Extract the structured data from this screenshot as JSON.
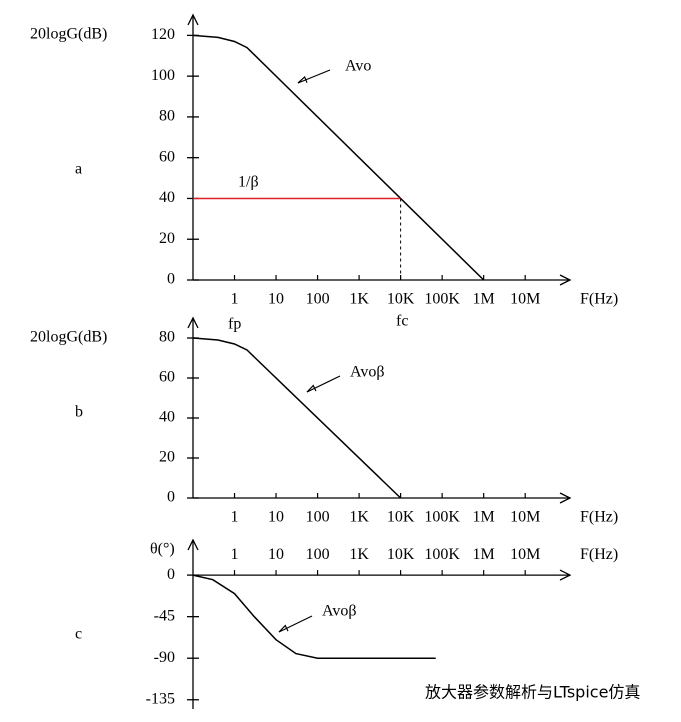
{
  "chart_data": [
    {
      "type": "line",
      "panel_label": "a",
      "ylabel": "20logG(dB)",
      "xlabel": "F(Hz)",
      "log_x": true,
      "xlim": [
        0.1,
        120000000
      ],
      "xticks": [
        1,
        10,
        100,
        {
          "value": 1000,
          "label": "1K"
        },
        {
          "value": 10000,
          "label": "10K"
        },
        {
          "value": 100000,
          "label": "100K"
        },
        {
          "value": 1000000,
          "label": "1M"
        },
        {
          "value": 10000000,
          "label": "10M"
        }
      ],
      "ylim": [
        0,
        130
      ],
      "yticks": [
        0,
        20,
        40,
        60,
        80,
        100,
        120
      ],
      "series": [
        {
          "name": "Avo",
          "color": "#000000",
          "x": [
            0.1,
            0.4,
            1,
            2,
            1000000
          ],
          "values": [
            120,
            119,
            117,
            114,
            0
          ]
        },
        {
          "name": "1/β",
          "color": "#e0202a",
          "x": [
            0.1,
            10000
          ],
          "values": [
            40,
            40
          ]
        }
      ],
      "annotations": [
        "fc"
      ]
    },
    {
      "type": "line",
      "panel_label": "b",
      "ylabel": "20logG(dB)",
      "xlabel": "F(Hz)",
      "log_x": true,
      "xlim": [
        0.1,
        120000000
      ],
      "xticks": [
        1,
        10,
        100,
        {
          "value": 1000,
          "label": "1K"
        },
        {
          "value": 10000,
          "label": "10K"
        },
        {
          "value": 100000,
          "label": "100K"
        },
        {
          "value": 1000000,
          "label": "1M"
        },
        {
          "value": 10000000,
          "label": "10M"
        }
      ],
      "ylim": [
        0,
        90
      ],
      "yticks": [
        0,
        20,
        40,
        60,
        80
      ],
      "series": [
        {
          "name": "Avoβ",
          "color": "#000000",
          "x": [
            0.1,
            0.4,
            1,
            2,
            10000
          ],
          "values": [
            80,
            79,
            77,
            74,
            0
          ]
        }
      ],
      "annotations": [
        "fp"
      ]
    },
    {
      "type": "line",
      "panel_label": "c",
      "ylabel": "θ(°)",
      "xlabel": "F(Hz)",
      "log_x": true,
      "xlim": [
        0.1,
        120000000
      ],
      "xticks": [
        1,
        10,
        100,
        {
          "value": 1000,
          "label": "1K"
        },
        {
          "value": 10000,
          "label": "10K"
        },
        {
          "value": 100000,
          "label": "100K"
        },
        {
          "value": 1000000,
          "label": "1M"
        },
        {
          "value": 10000000,
          "label": "10M"
        }
      ],
      "ylim": [
        -145,
        38
      ],
      "yticks": [
        0,
        -45,
        -90,
        -135
      ],
      "series": [
        {
          "name": "Avoβ",
          "color": "#000000",
          "x": [
            0.1,
            0.3,
            1,
            3,
            10,
            30,
            100,
            70000
          ],
          "values": [
            0,
            -5,
            -20,
            -45,
            -70,
            -85,
            -90,
            -90
          ]
        }
      ],
      "annotations": []
    }
  ],
  "watermark": "放大器参数解析与LTspice仿真"
}
